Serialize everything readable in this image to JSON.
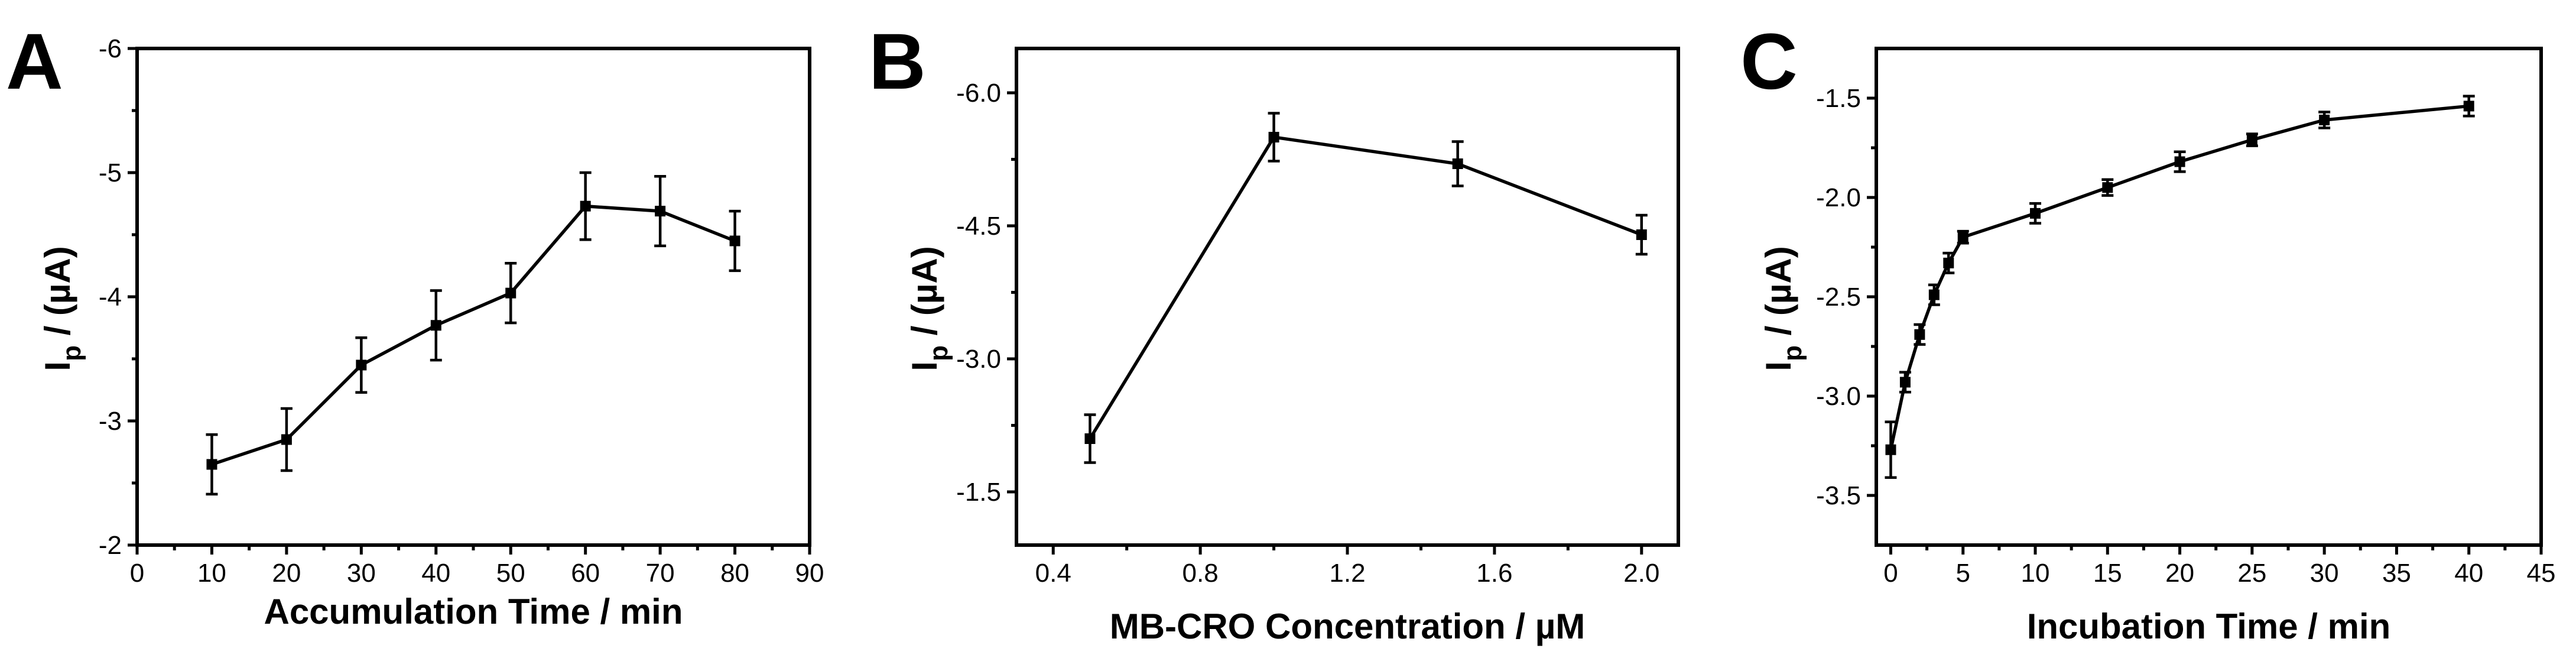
{
  "chart_data": [
    {
      "panel": "A",
      "type": "line",
      "xlabel": "Accumulation Time / min",
      "ylabel_main": "I",
      "ylabel_sub": "p",
      "ylabel_rest": " / (µA)",
      "x_ticks": [
        "0",
        "10",
        "20",
        "30",
        "40",
        "50",
        "60",
        "70",
        "80",
        "90"
      ],
      "y_ticks": [
        "-6",
        "-5",
        "-4",
        "-3",
        "-2"
      ],
      "xlim": [
        0,
        90
      ],
      "ylim": [
        -6,
        -2
      ],
      "y_inverted": true,
      "x": [
        10,
        20,
        30,
        40,
        50,
        60,
        70,
        80
      ],
      "y": [
        -2.65,
        -2.85,
        -3.45,
        -3.77,
        -4.03,
        -4.73,
        -4.69,
        -4.45
      ],
      "err": [
        0.24,
        0.25,
        0.22,
        0.28,
        0.24,
        0.27,
        0.28,
        0.24
      ]
    },
    {
      "panel": "B",
      "type": "line",
      "xlabel": "MB-CRO Concentration / µM",
      "ylabel_main": "I",
      "ylabel_sub": "p",
      "ylabel_rest": " / (µA)",
      "x_ticks": [
        "0.4",
        "0.8",
        "1.2",
        "1.6",
        "2.0"
      ],
      "y_ticks": [
        "-6.0",
        "-4.5",
        "-3.0",
        "-1.5"
      ],
      "xlim": [
        0.3,
        2.1
      ],
      "ylim": [
        -6.5,
        -0.9
      ],
      "y_inverted": true,
      "x": [
        0.5,
        1.0,
        1.5,
        2.0
      ],
      "y": [
        -2.1,
        -5.5,
        -5.2,
        -4.4
      ],
      "err": [
        0.27,
        0.27,
        0.25,
        0.22
      ]
    },
    {
      "panel": "C",
      "type": "line",
      "xlabel": "Incubation Time / min",
      "ylabel_main": "I",
      "ylabel_sub": "p",
      "ylabel_rest": " / (µA)",
      "x_ticks": [
        "0",
        "5",
        "10",
        "15",
        "20",
        "25",
        "30",
        "35",
        "40",
        "45"
      ],
      "y_ticks": [
        "-1.5",
        "-2.0",
        "-2.5",
        "-3.0",
        "-3.5"
      ],
      "xlim": [
        -1,
        45
      ],
      "ylim": [
        -3.75,
        -1.25
      ],
      "y_inverted": false,
      "x": [
        0,
        1,
        2,
        3,
        4,
        5,
        10,
        15,
        20,
        25,
        30,
        40
      ],
      "y": [
        -3.27,
        -2.93,
        -2.69,
        -2.49,
        -2.33,
        -2.2,
        -2.08,
        -1.95,
        -1.82,
        -1.71,
        -1.61,
        -1.54
      ],
      "err": [
        0.14,
        0.05,
        0.05,
        0.05,
        0.05,
        0.03,
        0.05,
        0.04,
        0.05,
        0.03,
        0.04,
        0.05
      ]
    }
  ]
}
